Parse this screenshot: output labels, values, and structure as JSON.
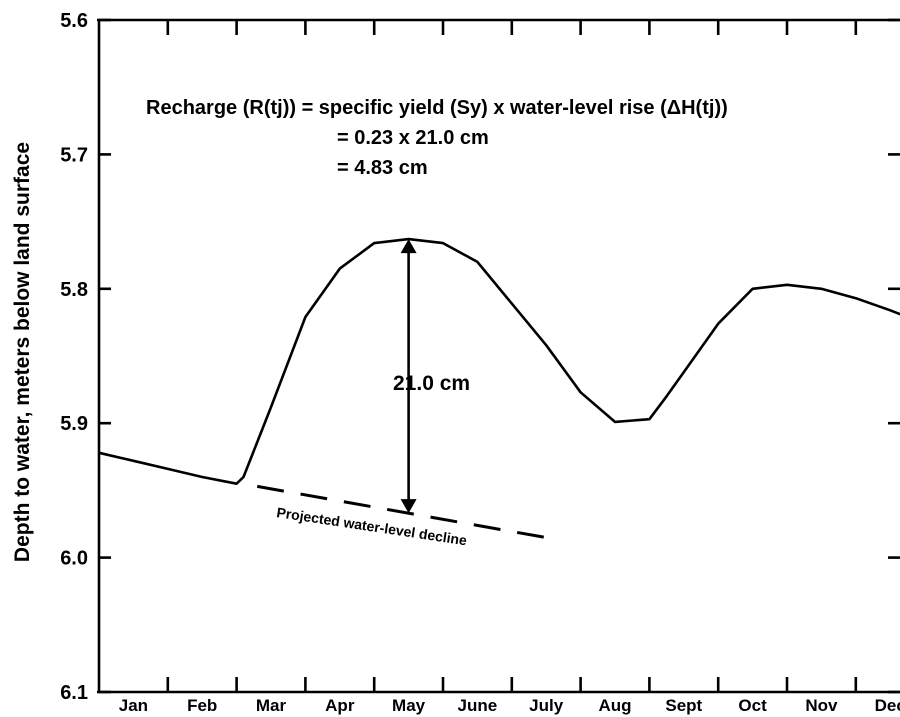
{
  "chart_data": {
    "type": "line",
    "ylabel": "Depth to water, meters below land surface",
    "xlabel": "",
    "y_inverted": true,
    "ylim": [
      5.6,
      6.1
    ],
    "yticks": [
      "5.6",
      "5.7",
      "5.8",
      "5.9",
      "6.0",
      "6.1"
    ],
    "categories": [
      "Jan",
      "Feb",
      "Mar",
      "Apr",
      "May",
      "June",
      "July",
      "Aug",
      "Sept",
      "Oct",
      "Nov",
      "Dec"
    ],
    "grid": false,
    "series": [
      {
        "style": "solid",
        "x": [
          0,
          0.5,
          1.0,
          1.5,
          2.0,
          2.1,
          2.5,
          3.0,
          3.5,
          4.0,
          4.5,
          5.0,
          5.5,
          6.0,
          6.5,
          7.0,
          7.5,
          8.0,
          8.25,
          8.5,
          9.0,
          9.5,
          10.0,
          10.5,
          11.0,
          11.5,
          12.0
        ],
        "y": [
          5.922,
          5.928,
          5.934,
          5.94,
          5.945,
          5.94,
          5.888,
          5.821,
          5.785,
          5.766,
          5.763,
          5.766,
          5.78,
          5.811,
          5.842,
          5.877,
          5.899,
          5.897,
          5.88,
          5.862,
          5.826,
          5.8,
          5.797,
          5.8,
          5.807,
          5.816,
          5.826
        ]
      },
      {
        "style": "dashed",
        "x": [
          2.3,
          6.6
        ],
        "y": [
          5.947,
          5.986
        ]
      }
    ],
    "annotations": {
      "formula_line1": "Recharge (R(tj)) = specific yield (Sy) x water-level rise (ΔH(tj))",
      "formula_line2": "= 0.23 x 21.0 cm",
      "formula_line3": "= 4.83 cm",
      "rise_label": "21.0 cm",
      "projection_label": "Projected water-level decline"
    }
  }
}
